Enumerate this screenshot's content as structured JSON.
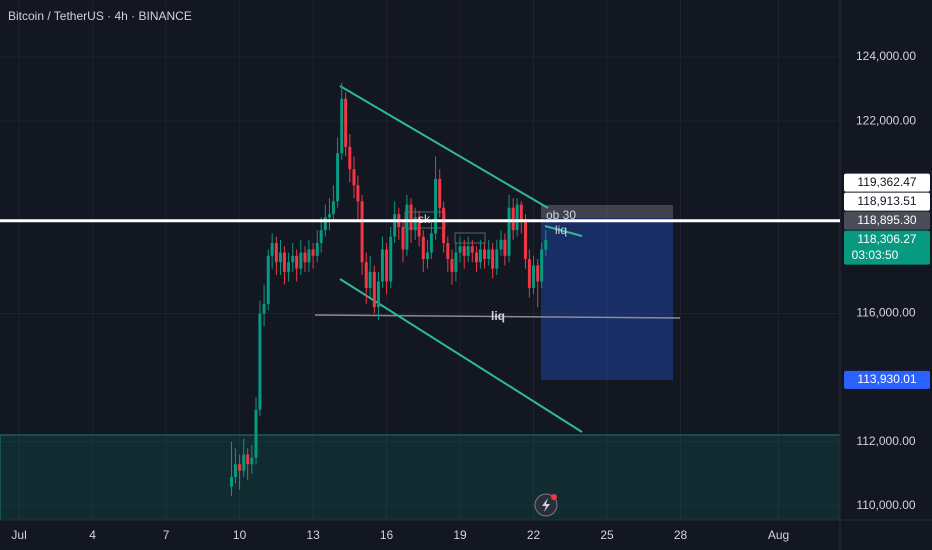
{
  "chart_data": {
    "type": "candlestick",
    "title": "Bitcoin / TetherUS · 4h · BINANCE",
    "x": [
      9.67,
      9.83,
      10,
      10.17,
      10.33,
      10.5,
      10.67,
      10.83,
      11,
      11.17,
      11.33,
      11.5,
      11.67,
      11.83,
      12,
      12.17,
      12.33,
      12.5,
      12.67,
      12.83,
      13,
      13.17,
      13.33,
      13.5,
      13.67,
      13.83,
      14,
      14.17,
      14.33,
      14.5,
      14.67,
      14.83,
      15,
      15.17,
      15.33,
      15.5,
      15.67,
      15.83,
      16,
      16.17,
      16.33,
      16.5,
      16.67,
      16.83,
      17,
      17.17,
      17.33,
      17.5,
      17.67,
      17.83,
      18,
      18.17,
      18.33,
      18.5,
      18.67,
      18.83,
      19,
      19.17,
      19.33,
      19.5,
      19.67,
      19.83,
      20,
      20.17,
      20.33,
      20.5,
      20.67,
      20.83,
      21,
      21.17,
      21.33,
      21.5,
      21.67,
      21.83,
      22,
      22.17,
      22.33,
      22.5
    ],
    "open": [
      110600,
      110900,
      111300,
      111100,
      111600,
      111300,
      111500,
      113000,
      116000,
      116300,
      117800,
      118200,
      117600,
      117900,
      117300,
      117600,
      117800,
      117400,
      117900,
      117600,
      118000,
      117800,
      118200,
      118600,
      119000,
      119100,
      119500,
      121000,
      122700,
      121200,
      120500,
      120000,
      119500,
      117600,
      116800,
      117300,
      116200,
      117000,
      118000,
      117000,
      118400,
      119100,
      118700,
      118000,
      119400,
      118600,
      119000,
      118400,
      117700,
      117900,
      118500,
      120200,
      119300,
      118200,
      117700,
      117300,
      117900,
      118100,
      117800,
      118100,
      117900,
      117600,
      118000,
      117700,
      118000,
      117400,
      118000,
      118300,
      117800,
      119300,
      118600,
      119400,
      118900,
      117700,
      116800,
      117500,
      117000,
      118000
    ],
    "high": [
      112000,
      111800,
      111600,
      112100,
      111800,
      111900,
      113400,
      116400,
      116900,
      118000,
      118500,
      118400,
      118300,
      118100,
      117900,
      118200,
      118000,
      118300,
      118100,
      118300,
      118200,
      118600,
      119000,
      119400,
      119600,
      120000,
      121500,
      123200,
      122900,
      121600,
      120900,
      120300,
      119700,
      117900,
      117800,
      117500,
      117300,
      118400,
      118200,
      118700,
      119500,
      119300,
      118900,
      119700,
      119600,
      119300,
      119200,
      118600,
      118300,
      118900,
      120900,
      120500,
      119500,
      118400,
      118000,
      118200,
      118400,
      118300,
      118400,
      118300,
      118100,
      118300,
      118200,
      118300,
      118200,
      118300,
      118600,
      118500,
      119700,
      119600,
      119600,
      119500,
      119100,
      118000,
      117800,
      117700,
      118200,
      118600
    ],
    "low": [
      110300,
      110700,
      110500,
      110900,
      110800,
      111000,
      111300,
      112800,
      115600,
      116100,
      117400,
      117200,
      117200,
      116900,
      117000,
      117300,
      117000,
      117200,
      117300,
      117300,
      117400,
      117600,
      117900,
      118400,
      118600,
      118900,
      119300,
      120800,
      120900,
      120100,
      119600,
      118900,
      117200,
      116300,
      116500,
      116000,
      115800,
      116800,
      116600,
      116800,
      118200,
      118300,
      117600,
      117800,
      118200,
      118300,
      118100,
      117300,
      117400,
      117700,
      118300,
      119000,
      117900,
      117300,
      116900,
      117000,
      117600,
      117400,
      117600,
      117600,
      117300,
      117400,
      117400,
      117500,
      117100,
      117200,
      117800,
      117500,
      117600,
      118300,
      118400,
      118500,
      117400,
      116500,
      116600,
      116200,
      116800,
      117800
    ],
    "close": [
      110900,
      111300,
      111100,
      111600,
      111300,
      111500,
      113000,
      116000,
      116300,
      117800,
      118200,
      117600,
      117900,
      117300,
      117600,
      117800,
      117400,
      117900,
      117600,
      118000,
      117800,
      118200,
      118600,
      119000,
      119100,
      119500,
      121000,
      122700,
      121200,
      120500,
      120000,
      119500,
      117600,
      116800,
      117300,
      116200,
      117000,
      118000,
      117000,
      118400,
      119100,
      118700,
      118000,
      119400,
      118600,
      119000,
      118400,
      117700,
      117900,
      118500,
      120200,
      119300,
      118200,
      117700,
      117300,
      117900,
      118100,
      117800,
      118100,
      117900,
      117600,
      118000,
      117700,
      118000,
      117400,
      118000,
      118300,
      117800,
      119300,
      118600,
      119400,
      118900,
      117700,
      116800,
      117500,
      117000,
      118000,
      118300
    ],
    "up_color": "#089981",
    "down_color": "#f23645",
    "xlim": [
      0.22,
      34.51
    ],
    "xticks": [
      {
        "value": 1,
        "label": "Jul"
      },
      4,
      7,
      10,
      13,
      16,
      19,
      22,
      25,
      28,
      {
        "value": 32,
        "label": "Aug"
      }
    ],
    "ylim": [
      109560,
      125780
    ],
    "yticks": [
      {
        "value": 110000,
        "label": "110,000.00"
      },
      {
        "value": 112000,
        "label": "112,000.00"
      },
      {
        "value": 116000,
        "label": "116,000.00"
      },
      {
        "value": 122000,
        "label": "122,000.00"
      },
      {
        "value": 124000,
        "label": "124,000.00"
      }
    ],
    "grid": true,
    "price_labels": [
      {
        "value": 119362.47,
        "label": "119,362.47",
        "color": "#ffffff",
        "text_color": "#131722"
      },
      {
        "value": 118913.51,
        "label": "118,913.51",
        "color": "#ffffff",
        "text_color": "#131722"
      },
      {
        "value": 118895.3,
        "label": "118,895.30",
        "color": "#4a4e59",
        "text_color": "#ffffff"
      },
      {
        "value": 118306.27,
        "label": "118,306.27",
        "color": "#089981",
        "text_color": "#ffffff",
        "countdown": "03:03:50"
      },
      {
        "value": 113930.01,
        "label": "113,930.01",
        "color": "#2962ff",
        "text_color": "#ffffff"
      }
    ],
    "level_line": {
      "value": 118895.3,
      "color": "#ffffff"
    },
    "annotations": [
      "sk",
      "ob 30",
      "liq",
      "liq"
    ]
  }
}
